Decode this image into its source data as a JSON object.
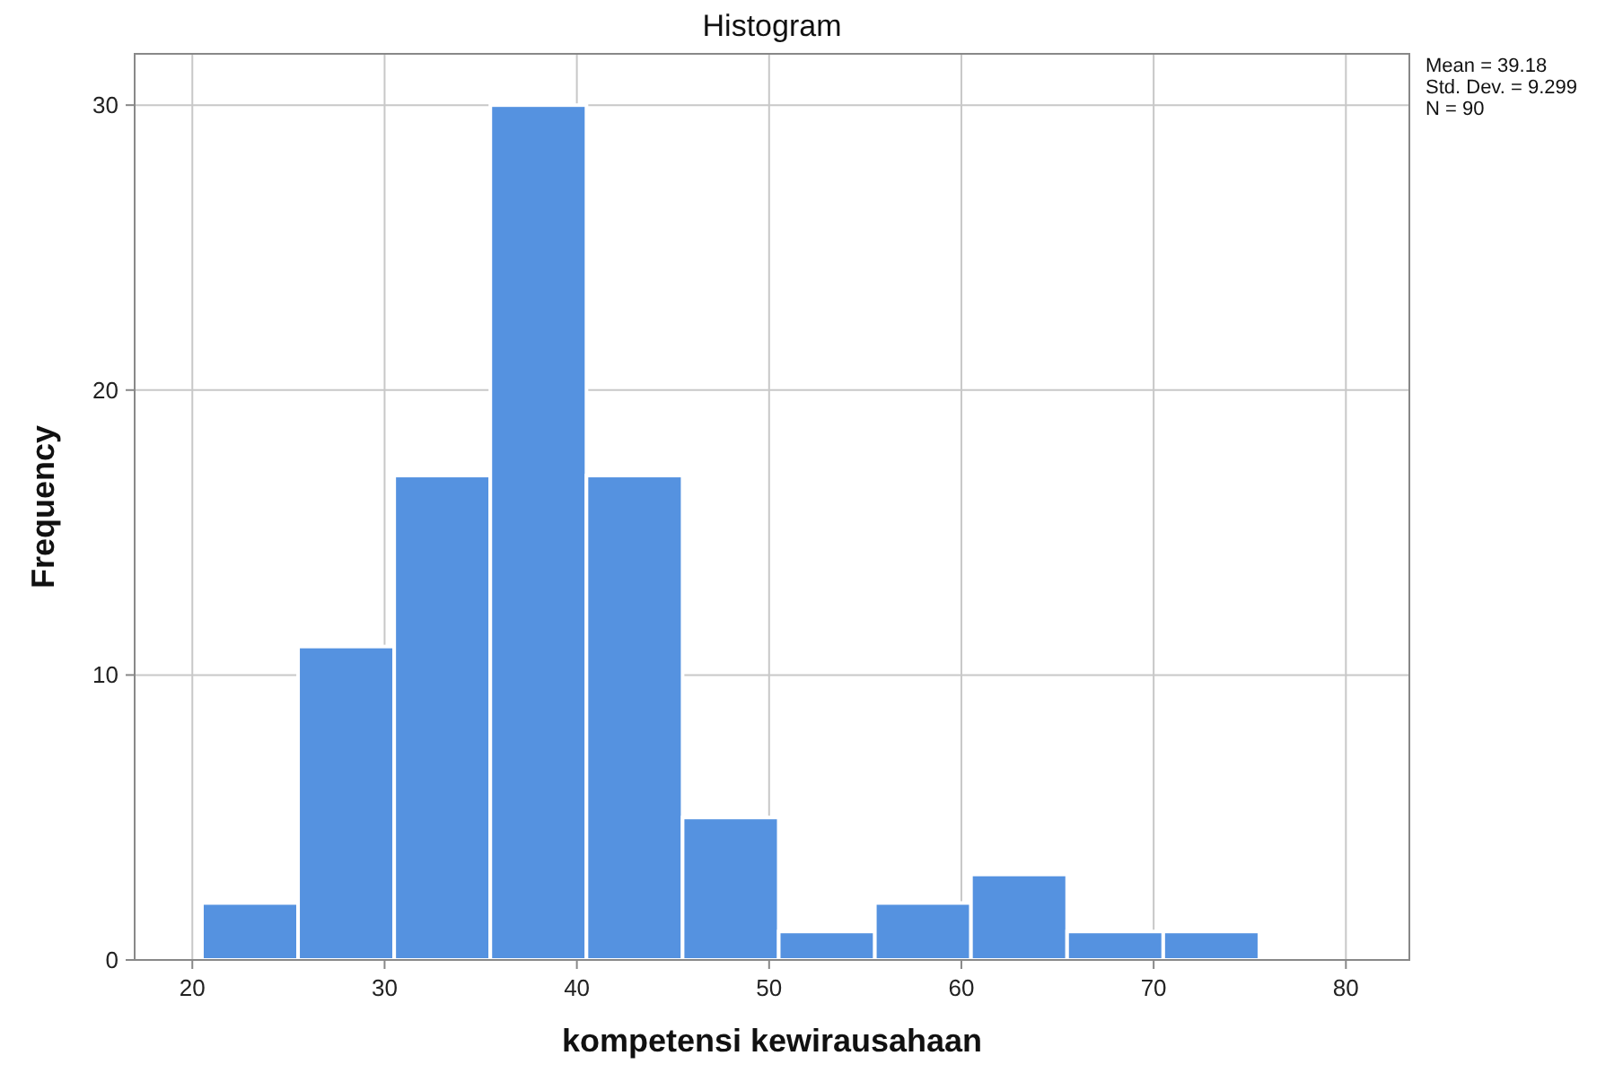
{
  "chart_data": {
    "type": "histogram",
    "title": "Histogram",
    "xlabel": "kompetensi kewirausahaan",
    "ylabel": "Frequency",
    "bins": [
      20.5,
      25.5,
      30.5,
      35.5,
      40.5,
      45.5,
      50.5,
      55.5,
      60.5,
      65.5,
      70.5,
      75.5
    ],
    "values": [
      2,
      11,
      17,
      30,
      17,
      5,
      1,
      2,
      3,
      1,
      1
    ],
    "color": "#5592e0",
    "xlim": [
      17,
      83.3
    ],
    "xticks": [
      20,
      30,
      40,
      50,
      60,
      70,
      80
    ],
    "ylim": [
      0,
      31.8
    ],
    "yticks": [
      0,
      10,
      20,
      30
    ],
    "grid": true,
    "annotations": [
      "Mean = 39.18",
      "Std. Dev. = 9.299",
      "N = 90"
    ]
  }
}
